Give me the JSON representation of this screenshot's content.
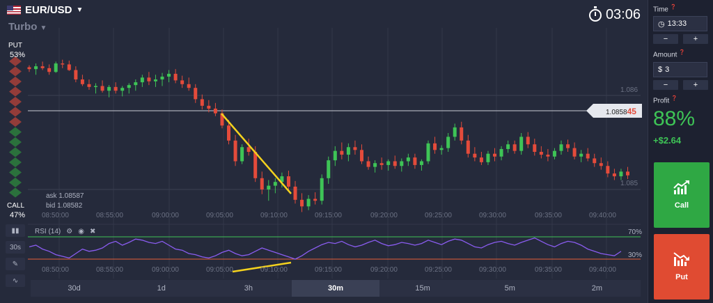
{
  "header": {
    "pair": "EUR/USD",
    "mode": "Turbo",
    "timer": "03:06",
    "flag_icon": "us-flag-icon"
  },
  "sentiment": {
    "put_label": "PUT",
    "put_pct": "53%",
    "call_label": "CALL",
    "call_pct": "47%"
  },
  "quotes": {
    "ask": "ask 1.08587",
    "bid": "bid 1.08582",
    "current_prefix": "1.0858",
    "current_suffix": "45"
  },
  "chart_data": {
    "type": "candlestick",
    "price_ticks": [
      "1.086",
      "1.085"
    ],
    "x_tick_labels": [
      "08:50:00",
      "08:55:00",
      "09:00:00",
      "09:05:00",
      "09:10:00",
      "09:15:00",
      "09:20:00",
      "09:25:00",
      "09:30:00",
      "09:35:00",
      "09:40:00"
    ],
    "candles": [
      [
        1.0863,
        1.08632,
        1.08625,
        1.08628
      ],
      [
        1.08628,
        1.08634,
        1.08622,
        1.08631
      ],
      [
        1.08631,
        1.08636,
        1.08627,
        1.08629
      ],
      [
        1.08629,
        1.08633,
        1.08622,
        1.08625
      ],
      [
        1.08625,
        1.08636,
        1.08624,
        1.08634
      ],
      [
        1.08634,
        1.08638,
        1.08629,
        1.08633
      ],
      [
        1.08633,
        1.08637,
        1.08626,
        1.08627
      ],
      [
        1.08627,
        1.08631,
        1.08614,
        1.08617
      ],
      [
        1.08617,
        1.08622,
        1.0861,
        1.08612
      ],
      [
        1.08612,
        1.08617,
        1.08606,
        1.08609
      ],
      [
        1.08609,
        1.08613,
        1.08602,
        1.0861
      ],
      [
        1.0861,
        1.08616,
        1.08603,
        1.08605
      ],
      [
        1.08605,
        1.08611,
        1.08598,
        1.08609
      ],
      [
        1.08609,
        1.08614,
        1.08602,
        1.08605
      ],
      [
        1.08605,
        1.0861,
        1.08599,
        1.08608
      ],
      [
        1.08608,
        1.08613,
        1.08602,
        1.08611
      ],
      [
        1.08611,
        1.08617,
        1.08605,
        1.08614
      ],
      [
        1.08614,
        1.08622,
        1.08609,
        1.08619
      ],
      [
        1.08619,
        1.08625,
        1.08611,
        1.08615
      ],
      [
        1.08615,
        1.08622,
        1.08609,
        1.08617
      ],
      [
        1.08617,
        1.08624,
        1.0861,
        1.0862
      ],
      [
        1.0862,
        1.08627,
        1.08614,
        1.08623
      ],
      [
        1.08623,
        1.08628,
        1.08613,
        1.08616
      ],
      [
        1.08616,
        1.08621,
        1.08608,
        1.08612
      ],
      [
        1.08612,
        1.08619,
        1.08605,
        1.08608
      ],
      [
        1.08608,
        1.08612,
        1.08592,
        1.08596
      ],
      [
        1.08596,
        1.08601,
        1.08585,
        1.08589
      ],
      [
        1.08589,
        1.08595,
        1.08582,
        1.08586
      ],
      [
        1.08586,
        1.08592,
        1.08578,
        1.08581
      ],
      [
        1.08581,
        1.08585,
        1.08565,
        1.08568
      ],
      [
        1.08568,
        1.08574,
        1.08548,
        1.08552
      ],
      [
        1.08552,
        1.08558,
        1.08525,
        1.0853
      ],
      [
        1.0853,
        1.08548,
        1.08527,
        1.08545
      ],
      [
        1.08545,
        1.08554,
        1.08536,
        1.0854
      ],
      [
        1.0854,
        1.08546,
        1.08508,
        1.08512
      ],
      [
        1.08512,
        1.08519,
        1.08495,
        1.085
      ],
      [
        1.085,
        1.0851,
        1.08488,
        1.08504
      ],
      [
        1.08504,
        1.08512,
        1.08496,
        1.08508
      ],
      [
        1.08508,
        1.08518,
        1.08502,
        1.08514
      ],
      [
        1.08514,
        1.0852,
        1.08498,
        1.08503
      ],
      [
        1.08503,
        1.08509,
        1.08485,
        1.08489
      ],
      [
        1.08489,
        1.08496,
        1.08476,
        1.08482
      ],
      [
        1.08482,
        1.08494,
        1.08478,
        1.0849
      ],
      [
        1.0849,
        1.08497,
        1.08484,
        1.08488
      ],
      [
        1.08488,
        1.08516,
        1.08484,
        1.08512
      ],
      [
        1.08512,
        1.08535,
        1.08506,
        1.08531
      ],
      [
        1.08531,
        1.08546,
        1.08525,
        1.08541
      ],
      [
        1.08541,
        1.0855,
        1.08532,
        1.08537
      ],
      [
        1.08537,
        1.08549,
        1.0853,
        1.08545
      ],
      [
        1.08545,
        1.08552,
        1.08537,
        1.08542
      ],
      [
        1.08542,
        1.08548,
        1.08527,
        1.0853
      ],
      [
        1.0853,
        1.08535,
        1.08521,
        1.08524
      ],
      [
        1.08524,
        1.08531,
        1.08518,
        1.08528
      ],
      [
        1.08528,
        1.08534,
        1.08521,
        1.08526
      ],
      [
        1.08526,
        1.08532,
        1.0852,
        1.0853
      ],
      [
        1.0853,
        1.08536,
        1.08522,
        1.08525
      ],
      [
        1.08525,
        1.08533,
        1.08519,
        1.0853
      ],
      [
        1.0853,
        1.08538,
        1.08525,
        1.08534
      ],
      [
        1.08534,
        1.08538,
        1.08522,
        1.08526
      ],
      [
        1.08526,
        1.08532,
        1.0852,
        1.0853
      ],
      [
        1.0853,
        1.08552,
        1.08527,
        1.08549
      ],
      [
        1.08549,
        1.08556,
        1.08538,
        1.08542
      ],
      [
        1.08542,
        1.08547,
        1.08537,
        1.08544
      ],
      [
        1.08544,
        1.0856,
        1.0854,
        1.08556
      ],
      [
        1.08556,
        1.0857,
        1.08552,
        1.08566
      ],
      [
        1.08566,
        1.08572,
        1.08548,
        1.08552
      ],
      [
        1.08552,
        1.08558,
        1.08534,
        1.08538
      ],
      [
        1.08538,
        1.08545,
        1.0853,
        1.08534
      ],
      [
        1.08534,
        1.0854,
        1.08526,
        1.08529
      ],
      [
        1.08529,
        1.08541,
        1.08526,
        1.08538
      ],
      [
        1.08538,
        1.08544,
        1.0853,
        1.08535
      ],
      [
        1.08535,
        1.08546,
        1.08531,
        1.08543
      ],
      [
        1.08543,
        1.08552,
        1.08539,
        1.08548
      ],
      [
        1.08548,
        1.08552,
        1.08538,
        1.08541
      ],
      [
        1.08541,
        1.0856,
        1.08537,
        1.08556
      ],
      [
        1.08556,
        1.08561,
        1.08544,
        1.08548
      ],
      [
        1.08548,
        1.08554,
        1.08536,
        1.0854
      ],
      [
        1.0854,
        1.08546,
        1.08533,
        1.08537
      ],
      [
        1.08537,
        1.08543,
        1.0853,
        1.08535
      ],
      [
        1.08535,
        1.08544,
        1.08532,
        1.08541
      ],
      [
        1.08541,
        1.08552,
        1.08537,
        1.08548
      ],
      [
        1.08548,
        1.08553,
        1.0854,
        1.08544
      ],
      [
        1.08544,
        1.0855,
        1.08532,
        1.08535
      ],
      [
        1.08535,
        1.08542,
        1.08529,
        1.08538
      ],
      [
        1.08538,
        1.08544,
        1.0853,
        1.08533
      ],
      [
        1.08533,
        1.08538,
        1.08524,
        1.08528
      ],
      [
        1.08528,
        1.08534,
        1.08521,
        1.08525
      ],
      [
        1.08525,
        1.0853,
        1.08513,
        1.08517
      ],
      [
        1.08517,
        1.08522,
        1.0851,
        1.08514
      ],
      [
        1.08514,
        1.08522,
        1.0851,
        1.08519
      ],
      [
        1.08519,
        1.08524,
        1.08511,
        1.08515
      ]
    ],
    "rsi": {
      "title": "RSI (14)",
      "upper_level_label": "70%",
      "lower_level_label": "30%",
      "upper": 70,
      "lower": 30,
      "values": [
        52,
        55,
        48,
        44,
        38,
        35,
        32,
        40,
        48,
        44,
        46,
        50,
        58,
        62,
        55,
        60,
        66,
        64,
        60,
        58,
        62,
        55,
        48,
        46,
        40,
        38,
        34,
        32,
        36,
        42,
        46,
        40,
        36,
        38,
        44,
        50,
        46,
        42,
        38,
        34,
        30,
        36,
        44,
        50,
        56,
        60,
        58,
        62,
        56,
        52,
        55,
        60,
        64,
        58,
        54,
        56,
        60,
        58,
        55,
        58,
        64,
        60,
        56,
        62,
        66,
        64,
        58,
        52,
        50,
        56,
        60,
        62,
        58,
        55,
        60,
        64,
        68,
        62,
        56,
        52,
        58,
        62,
        60,
        55,
        48,
        44,
        40,
        38,
        36,
        44
      ]
    }
  },
  "timeframes": [
    {
      "label": "30d",
      "active": false
    },
    {
      "label": "1d",
      "active": false
    },
    {
      "label": "3h",
      "active": false
    },
    {
      "label": "30m",
      "active": true
    },
    {
      "label": "15m",
      "active": false
    },
    {
      "label": "5m",
      "active": false
    },
    {
      "label": "2m",
      "active": false
    }
  ],
  "tools": {
    "chart_type": "bar-chart-icon",
    "interval": "30s",
    "draw": "pen-icon",
    "indicator": "wave-icon"
  },
  "sidebar": {
    "time_label": "Time",
    "time_value": "13:33",
    "amount_label": "Amount",
    "currency": "$",
    "amount_value": "3",
    "minus": "−",
    "plus": "+",
    "profit_label": "Profit",
    "profit_pct": "88%",
    "profit_amt": "+$2.64",
    "call_label": "Call",
    "put_label": "Put"
  },
  "colors": {
    "bull": "#3ec456",
    "bear": "#e44b3b",
    "rsi": "#8a5cf0",
    "trend": "#f4d21e"
  }
}
